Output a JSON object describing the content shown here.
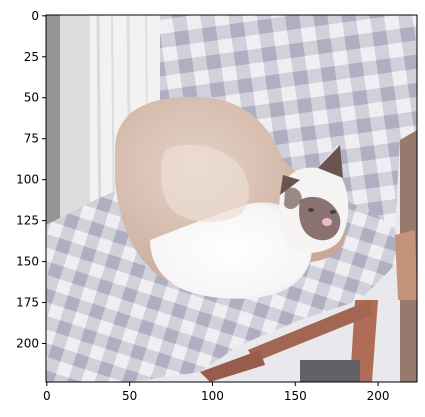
{
  "figure": {
    "image_subject": "cat",
    "x_ticks": [
      "0",
      "50",
      "100",
      "150",
      "200"
    ],
    "x_tick_values": [
      0,
      50,
      100,
      150,
      200
    ],
    "y_ticks": [
      "0",
      "25",
      "50",
      "75",
      "100",
      "125",
      "150",
      "175",
      "200"
    ],
    "y_tick_values": [
      0,
      25,
      50,
      75,
      100,
      125,
      150,
      175,
      200
    ],
    "x_range": [
      -0.5,
      223.5
    ],
    "y_range": [
      223.5,
      -0.5
    ],
    "colors": {
      "check_light": "#eeeef2",
      "check_dark": "#b5b5c6",
      "wood": "#a9614a",
      "cat_white": "#fbfbfb",
      "cat_brown": "#5e4642",
      "cat_beige": "#d4b5a4"
    }
  }
}
